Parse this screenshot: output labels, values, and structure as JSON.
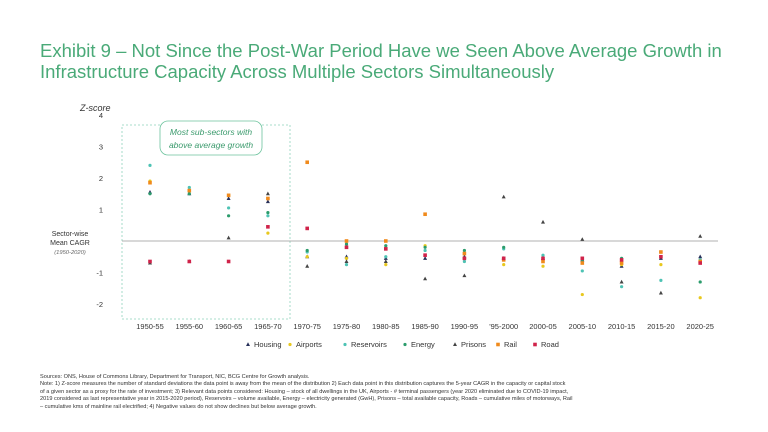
{
  "title": {
    "line1": "Exhibit 9 – Not Since the Post-War Period Have we Seen Above Average Growth in",
    "line2": "Infrastructure Capacity Across Multiple Sectors Simultaneously"
  },
  "annotation": {
    "line1": "Most sub-sectors with",
    "line2": "above average growth"
  },
  "mean_label": {
    "line1": "Sector-wise",
    "line2": "Mean CAGR",
    "line3": "(1950-2020)"
  },
  "colors": {
    "Housing": "#27305a",
    "Airports": "#e8c81e",
    "Reservoirs": "#4ec3b4",
    "Energy": "#2c9c6c",
    "Prisons": "#444444",
    "Rail": "#f08a1c",
    "Road": "#d0234a"
  },
  "chart_data": {
    "type": "scatter",
    "title": "Exhibit 9 – Not Since the Post-War Period Have we Seen Above Average Growth in Infrastructure Capacity Across Multiple Sectors Simultaneously",
    "ylabel": "Z-score",
    "xlabel": "",
    "ylim": [
      -2,
      4
    ],
    "yticks": [
      4,
      3,
      2,
      1,
      -1,
      -2
    ],
    "categories": [
      "1950-55",
      "1955-60",
      "1960-65",
      "1965-70",
      "1970-75",
      "1975-80",
      "1980-85",
      "1985-90",
      "1990-95",
      "'95-2000",
      "2000-05",
      "2005-10",
      "2010-15",
      "2015-20",
      "2020-25"
    ],
    "series": [
      {
        "name": "Housing",
        "marker": "triangle",
        "values": [
          1.55,
          1.5,
          1.35,
          1.25,
          -0.5,
          -0.5,
          -0.55,
          -0.55,
          -0.5,
          -0.55,
          -0.55,
          -0.6,
          -0.8,
          -0.55,
          -0.5
        ]
      },
      {
        "name": "Airports",
        "marker": "circle",
        "values": [
          1.9,
          1.6,
          1.45,
          0.25,
          -0.5,
          -0.55,
          -0.75,
          -0.15,
          -0.55,
          -0.75,
          -0.8,
          -1.7,
          -0.75,
          -0.75,
          -1.8
        ]
      },
      {
        "name": "Reservoirs",
        "marker": "circle",
        "values": [
          2.4,
          1.7,
          1.05,
          0.8,
          -0.35,
          -0.75,
          -0.5,
          -0.3,
          -0.65,
          -0.25,
          -0.45,
          -0.95,
          -1.45,
          -1.25,
          -0.6
        ]
      },
      {
        "name": "Energy",
        "marker": "circle",
        "values": [
          1.5,
          1.5,
          0.8,
          0.9,
          -0.3,
          -0.1,
          -0.15,
          -0.2,
          -0.3,
          -0.2,
          -0.6,
          -0.6,
          -0.55,
          -0.35,
          -1.3
        ]
      },
      {
        "name": "Prisons",
        "marker": "triangle",
        "values": [
          -0.7,
          -0.65,
          0.1,
          1.5,
          -0.8,
          -0.65,
          -0.65,
          -1.2,
          -1.1,
          1.4,
          0.6,
          0.05,
          -1.3,
          -1.65,
          0.15
        ]
      },
      {
        "name": "Rail",
        "marker": "square",
        "values": [
          1.85,
          1.6,
          1.45,
          1.35,
          2.5,
          0.0,
          0.0,
          0.85,
          -0.4,
          -0.6,
          -0.65,
          -0.7,
          -0.7,
          -0.35,
          -0.65
        ]
      },
      {
        "name": "Road",
        "marker": "square",
        "values": [
          -0.65,
          -0.65,
          -0.65,
          0.45,
          0.4,
          -0.2,
          -0.25,
          -0.45,
          -0.55,
          -0.55,
          -0.55,
          -0.55,
          -0.6,
          -0.5,
          -0.7
        ]
      }
    ],
    "legend": [
      "Housing",
      "Airports",
      "Reservoirs",
      "Energy",
      "Prisons",
      "Rail",
      "Road"
    ],
    "legend_position": "bottom-center"
  },
  "footnote": {
    "line1": "Sources: ONS, House of Commons Library, Department for Transport, NIC, BCG Centre for Growth analysis.",
    "line2": "Note: 1) Z-score measures the number of standard deviations the data point is away from the mean of the distribution 2) Each data point in this distribution captures the 5-year CAGR in the capacity or capital stock",
    "line3": "of a given sector as a proxy for the rate of investment; 3) Relevant data points considered: Housing – stock of all dwellings in the UK, Airports - # terminal passengers (year 2020 eliminated due to COVID-19 impact,",
    "line4": "2019 considered as last representative year in 2015-2020 period), Reservoirs – volume available, Energy – electricity generated (GwH), Prisons – total available capacity, Roads – cumulative miles of motorways, Rail",
    "line5": "– cumulative kms of mainline rail electrified; 4) Negative values do not show declines but below average growth."
  }
}
